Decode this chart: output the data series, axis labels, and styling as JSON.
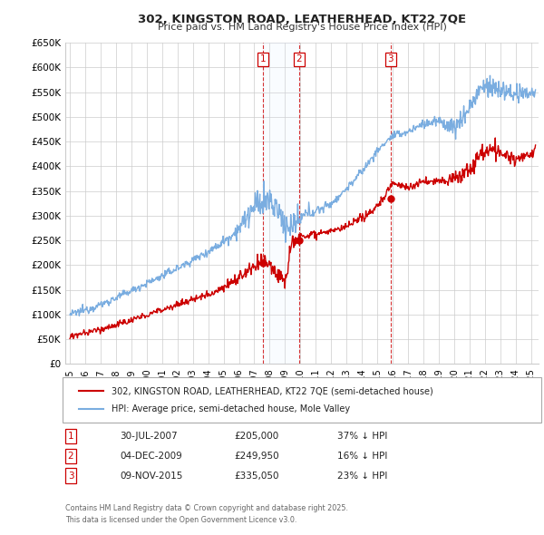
{
  "title": "302, KINGSTON ROAD, LEATHERHEAD, KT22 7QE",
  "subtitle": "Price paid vs. HM Land Registry's House Price Index (HPI)",
  "legend_line1": "302, KINGSTON ROAD, LEATHERHEAD, KT22 7QE (semi-detached house)",
  "legend_line2": "HPI: Average price, semi-detached house, Mole Valley",
  "footer1": "Contains HM Land Registry data © Crown copyright and database right 2025.",
  "footer2": "This data is licensed under the Open Government Licence v3.0.",
  "transactions": [
    {
      "num": 1,
      "date": "30-JUL-2007",
      "price": "£205,000",
      "hpi": "37% ↓ HPI"
    },
    {
      "num": 2,
      "date": "04-DEC-2009",
      "price": "£249,950",
      "hpi": "16% ↓ HPI"
    },
    {
      "num": 3,
      "date": "09-NOV-2015",
      "price": "£335,050",
      "hpi": "23% ↓ HPI"
    }
  ],
  "transaction_dates_decimal": [
    2007.58,
    2009.92,
    2015.86
  ],
  "transaction_prices": [
    205000,
    249950,
    335050
  ],
  "ylim": [
    0,
    650000
  ],
  "yticks": [
    0,
    50000,
    100000,
    150000,
    200000,
    250000,
    300000,
    350000,
    400000,
    450000,
    500000,
    550000,
    600000,
    650000
  ],
  "ytick_labels": [
    "£0",
    "£50K",
    "£100K",
    "£150K",
    "£200K",
    "£250K",
    "£300K",
    "£350K",
    "£400K",
    "£450K",
    "£500K",
    "£550K",
    "£600K",
    "£650K"
  ],
  "xlim_start": 1994.7,
  "xlim_end": 2025.5,
  "xtick_years": [
    1995,
    1996,
    1997,
    1998,
    1999,
    2000,
    2001,
    2002,
    2003,
    2004,
    2005,
    2006,
    2007,
    2008,
    2009,
    2010,
    2011,
    2012,
    2013,
    2014,
    2015,
    2016,
    2017,
    2018,
    2019,
    2020,
    2021,
    2022,
    2023,
    2024,
    2025
  ],
  "red_color": "#cc0000",
  "blue_color": "#7aade0",
  "shade_color": "#ddeeff",
  "dashed_color": "#cc0000",
  "background_color": "#ffffff",
  "grid_color": "#cccccc",
  "box_color": "#cc0000"
}
